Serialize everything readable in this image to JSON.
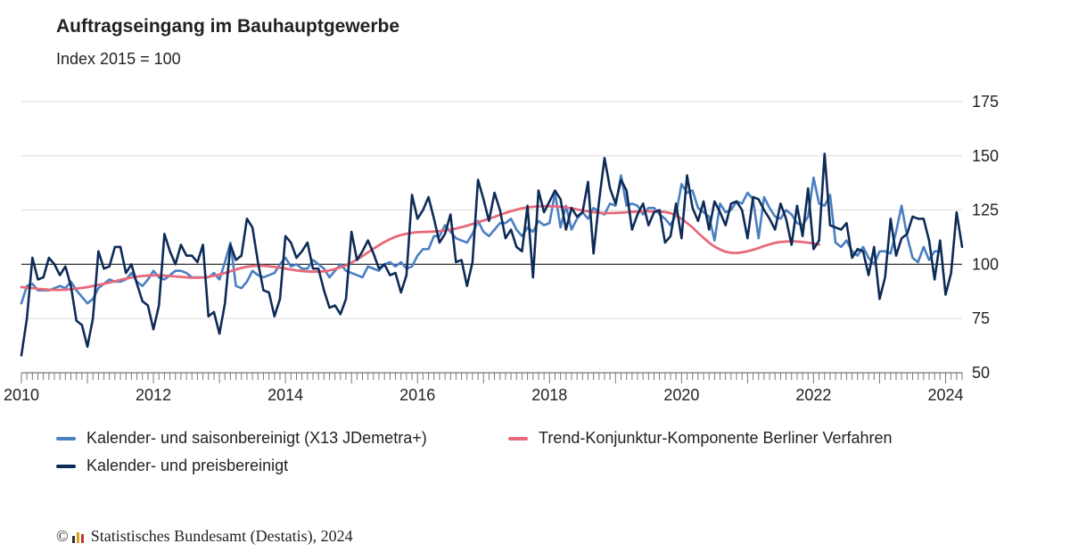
{
  "header": {
    "title": "Auftragseingang im Bauhauptgewerbe",
    "subtitle": "Index 2015 = 100"
  },
  "legend": {
    "item1": "Kalender- und saisonbereinigt (X13 JDemetra+)",
    "item2": "Trend-Konjunktur-Komponente Berliner Verfahren",
    "item3": "Kalender- und preisbereinigt"
  },
  "source": {
    "copyright": "©",
    "text": "Statistisches Bundesamt (Destatis), 2024"
  },
  "colors": {
    "saisonbereinigt": "#4a7fc1",
    "trend": "#e8697a",
    "preisbereinigt": "#0d2b57",
    "baseline": "#333333",
    "grid": "#dddddd"
  },
  "chart_data": {
    "type": "line",
    "title": "Auftragseingang im Bauhauptgewerbe",
    "subtitle": "Index 2015 = 100",
    "x_start": "2010-01",
    "x_end": "2024-04",
    "x_ticks": [
      "2010",
      "2012",
      "2014",
      "2016",
      "2018",
      "2020",
      "2022",
      "2024"
    ],
    "y_ticks": [
      50,
      75,
      100,
      125,
      150,
      175
    ],
    "ylim": [
      50,
      175
    ],
    "reference_line": 100,
    "series": [
      {
        "name": "Kalender- und saisonbereinigt (X13 JDemetra+)",
        "values": [
          82,
          90,
          91,
          88,
          88,
          88,
          89,
          90,
          89,
          92,
          88,
          85,
          82,
          84,
          89,
          91,
          93,
          92,
          92,
          93,
          96,
          92,
          90,
          93,
          97,
          94,
          93,
          95,
          97,
          97,
          96,
          94,
          94,
          94,
          94,
          96,
          93,
          101,
          110,
          90,
          89,
          92,
          97,
          95,
          94,
          95,
          96,
          100,
          103,
          99,
          100,
          98,
          98,
          102,
          100,
          98,
          94,
          97,
          100,
          97,
          96,
          95,
          94,
          99,
          98,
          97,
          100,
          101,
          99,
          101,
          98,
          99,
          104,
          107,
          107,
          113,
          113,
          118,
          115,
          112,
          111,
          110,
          114,
          120,
          115,
          113,
          116,
          119,
          119,
          121,
          116,
          113,
          117,
          115,
          120,
          118,
          119,
          133,
          117,
          127,
          116,
          121,
          124,
          121,
          126,
          124,
          123,
          128,
          127,
          141,
          127,
          128,
          127,
          123,
          126,
          126,
          123,
          121,
          118,
          123,
          137,
          133,
          134,
          126,
          124,
          122,
          111,
          128,
          124,
          125,
          129,
          128,
          133,
          130,
          112,
          131,
          126,
          122,
          121,
          125,
          123,
          119,
          118,
          122,
          140,
          128,
          127,
          132,
          110,
          108,
          111,
          106,
          104,
          108,
          103,
          100,
          106,
          106,
          105,
          115,
          127,
          113,
          103,
          101,
          108,
          102,
          106,
          106
        ],
        "color": "#4a7fc1"
      },
      {
        "name": "Trend-Konjunktur-Komponente Berliner Verfahren",
        "values": [
          89.5,
          89.2,
          89,
          88.7,
          88.5,
          88.3,
          88.2,
          88.2,
          88.3,
          88.5,
          88.8,
          89.1,
          89.5,
          90,
          90.5,
          91,
          91.6,
          92.2,
          92.8,
          93.4,
          93.9,
          94.3,
          94.6,
          94.8,
          94.9,
          94.9,
          94.8,
          94.6,
          94.4,
          94.2,
          94,
          93.8,
          93.8,
          93.9,
          94.2,
          94.7,
          95.3,
          96,
          96.8,
          97.6,
          98.3,
          98.9,
          99.2,
          99.4,
          99.3,
          99.1,
          98.8,
          98.4,
          98,
          97.6,
          97.2,
          96.9,
          96.7,
          96.6,
          96.6,
          96.8,
          97.2,
          97.8,
          98.6,
          99.6,
          100.8,
          102.2,
          103.8,
          105.5,
          107.2,
          108.8,
          110.3,
          111.6,
          112.7,
          113.5,
          114.1,
          114.5,
          114.8,
          114.9,
          115,
          115.1,
          115.3,
          115.6,
          116,
          116.5,
          117.1,
          117.8,
          118.6,
          119.4,
          120.2,
          121,
          121.9,
          122.8,
          123.7,
          124.5,
          125.2,
          125.8,
          126.2,
          126.5,
          126.7,
          126.8,
          126.8,
          126.7,
          126.5,
          126.2,
          125.8,
          125.3,
          124.8,
          124.4,
          124,
          123.8,
          123.6,
          123.6,
          123.7,
          123.8,
          124,
          124.2,
          124.3,
          124.4,
          124.4,
          124.4,
          124.3,
          124.1,
          123.6,
          122.5,
          121,
          119,
          117,
          114.5,
          112.2,
          110,
          108.2,
          106.8,
          105.8,
          105.3,
          105.2,
          105.5,
          106,
          106.7,
          107.5,
          108.4,
          109.2,
          109.9,
          110.3,
          110.5,
          110.6,
          110.5,
          110.3,
          110,
          109.6,
          109.1
        ],
        "color": "#e8697a"
      },
      {
        "name": "Kalender- und preisbereinigt",
        "values": [
          58,
          75,
          103,
          93,
          94,
          103,
          100,
          95,
          99,
          90,
          74,
          72,
          62,
          75,
          106,
          98,
          99,
          108,
          108,
          96,
          100,
          91,
          83,
          81,
          70,
          81,
          114,
          106,
          100,
          109,
          104,
          104,
          101,
          109,
          76,
          78,
          68,
          82,
          109,
          102,
          104,
          121,
          117,
          101,
          88,
          87,
          76,
          84,
          113,
          110,
          103,
          106,
          110,
          98,
          98,
          88,
          80,
          81,
          77,
          84,
          115,
          102,
          106,
          111,
          105,
          98,
          100,
          95,
          96,
          87,
          95,
          132,
          121,
          125,
          131,
          121,
          110,
          114,
          123,
          101,
          102,
          90,
          101,
          139,
          130,
          120,
          133,
          125,
          112,
          116,
          108,
          106,
          127,
          94,
          134,
          124,
          129,
          134,
          130,
          116,
          126,
          122,
          124,
          138,
          105,
          129,
          149,
          135,
          128,
          139,
          134,
          116,
          123,
          128,
          118,
          124,
          125,
          110,
          113,
          128,
          112,
          141,
          126,
          120,
          129,
          116,
          129,
          124,
          118,
          128,
          129,
          125,
          112,
          131,
          130,
          125,
          121,
          116,
          128,
          121,
          109,
          127,
          113,
          135,
          107,
          111,
          151,
          118,
          117,
          116,
          119,
          103,
          107,
          106,
          95,
          108,
          84,
          94,
          121,
          104,
          112,
          114,
          122,
          121,
          121,
          111,
          93,
          111,
          86,
          96,
          124,
          108
        ]
      }
    ]
  }
}
